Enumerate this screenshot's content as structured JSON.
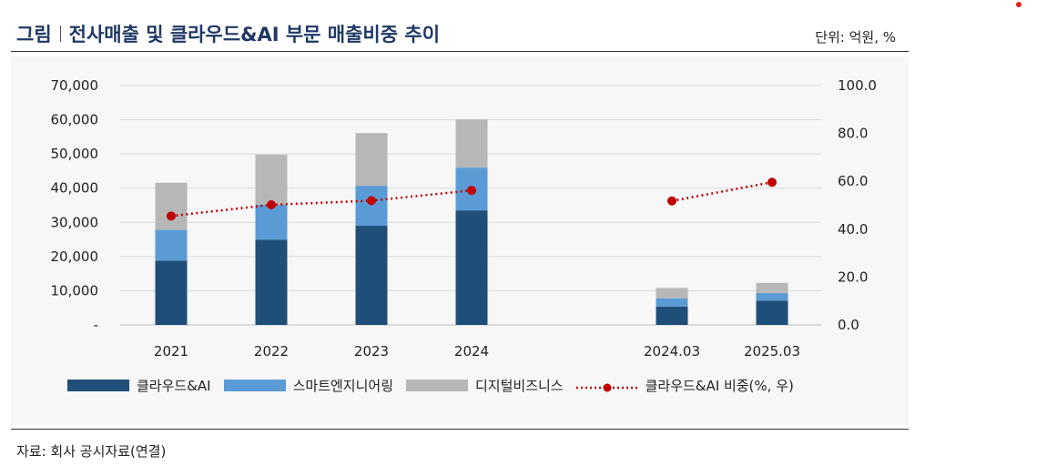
{
  "header": {
    "prefix": "그림",
    "title": "전사매출 및 클라우드&AI 부문 매출비중 추이",
    "unit": "단위: 억원, %"
  },
  "source": "자료: 회사 공시자료(연결)",
  "colors": {
    "cloud": "#1f4e79",
    "smart": "#5b9bd5",
    "digital": "#b7b7b7",
    "ratio": "#c00000",
    "title": "#1f3864"
  },
  "chart_data": {
    "type": "bar",
    "stacked": true,
    "categories": [
      "2021",
      "2022",
      "2023",
      "2024",
      "2024.03",
      "2025.03"
    ],
    "series": [
      {
        "name": "클라우드&AI",
        "values": [
          18800,
          24900,
          29000,
          33500,
          5400,
          7100
        ]
      },
      {
        "name": "스마트엔지니어링",
        "values": [
          9000,
          10300,
          11700,
          12500,
          2400,
          2200
        ]
      },
      {
        "name": "디지털비즈니스",
        "values": [
          13800,
          14600,
          15400,
          14100,
          3000,
          3000
        ]
      }
    ],
    "line_series": {
      "name": "클라우드&AI 비중(%, 우)",
      "values": [
        45.5,
        50.2,
        51.9,
        56.2,
        51.8,
        59.6
      ],
      "axis": "right"
    },
    "y_left": {
      "ticks": [
        "-",
        "10,000",
        "20,000",
        "30,000",
        "40,000",
        "50,000",
        "60,000",
        "70,000"
      ],
      "range": [
        0,
        70000
      ]
    },
    "y_right": {
      "ticks": [
        "0.0",
        "20.0",
        "40.0",
        "60.0",
        "80.0",
        "100.0"
      ],
      "range": [
        0,
        100
      ]
    },
    "grid": true,
    "legend_position": "bottom"
  }
}
